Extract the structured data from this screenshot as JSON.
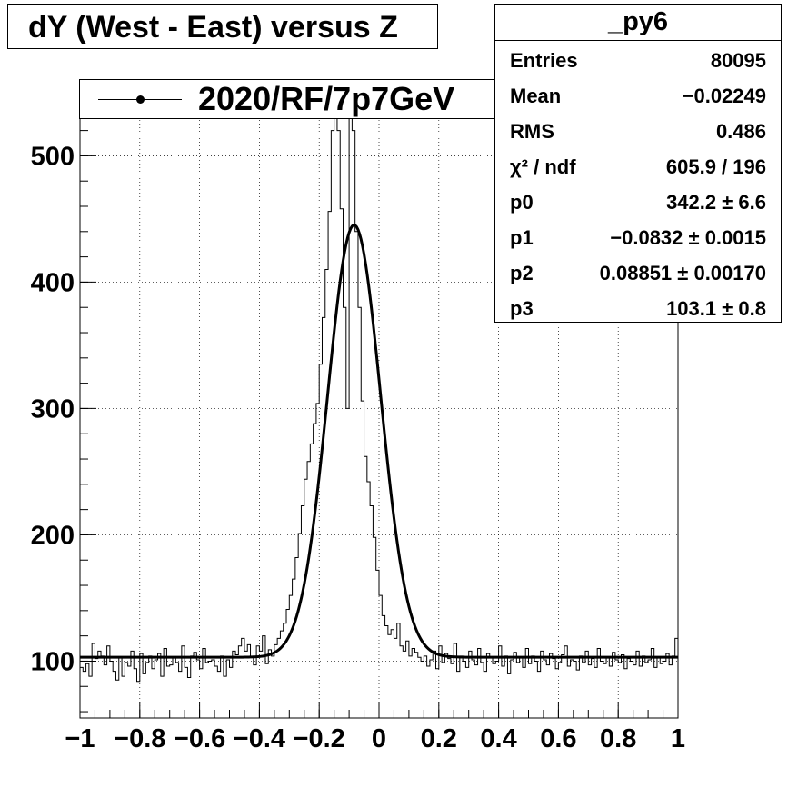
{
  "title": "dY (West - East) versus Z",
  "legend": {
    "label": "2020/RF/7p7GeV"
  },
  "stats": {
    "name": "_py6",
    "rows": [
      {
        "key": "Entries",
        "value": "80095"
      },
      {
        "key": "Mean",
        "value": "−0.02249"
      },
      {
        "key": "RMS",
        "value": "0.486"
      },
      {
        "key": "χ² / ndf",
        "value": "605.9 / 196"
      },
      {
        "key": "p0",
        "value": "342.2 ± 6.6"
      },
      {
        "key": "p1",
        "value": "−0.0832 ± 0.0015"
      },
      {
        "key": "p2",
        "value": "0.08851 ± 0.00170"
      },
      {
        "key": "p3",
        "value": "103.1 ± 0.8"
      }
    ]
  },
  "chart_data": {
    "type": "histogram",
    "title": "dY (West - East) versus Z",
    "xlabel": "",
    "ylabel": "",
    "xlim": [
      -1,
      1
    ],
    "ylim": [
      55,
      560
    ],
    "grid": true,
    "xticks": [
      -1,
      -0.8,
      -0.6,
      -0.4,
      -0.2,
      0,
      0.2,
      0.4,
      0.6,
      0.8,
      1
    ],
    "xtick_labels": [
      "−1",
      "−0.8",
      "−0.6",
      "−0.4",
      "−0.2",
      "0",
      "0.2",
      "0.4",
      "0.6",
      "0.8",
      "1"
    ],
    "yticks": [
      100,
      200,
      300,
      400,
      500
    ],
    "ytick_labels": [
      "100",
      "200",
      "300",
      "400",
      "500"
    ],
    "series": [
      {
        "name": "2020/RF/7p7GeV",
        "kind": "step",
        "bins": [
          -1,
          1
        ],
        "nbins": 200,
        "counts": [
          95,
          92,
          98,
          88,
          114,
          102,
          108,
          104,
          97,
          112,
          100,
          92,
          85,
          103,
          88,
          99,
          96,
          108,
          94,
          84,
          106,
          90,
          99,
          104,
          94,
          101,
          106,
          88,
          110,
          96,
          97,
          103,
          99,
          92,
          112,
          95,
          87,
          104,
          107,
          101,
          94,
          110,
          99,
          100,
          101,
          96,
          92,
          104,
          88,
          101,
          95,
          108,
          105,
          112,
          118,
          108,
          113,
          103,
          97,
          112,
          108,
          120,
          98,
          109,
          104,
          113,
          118,
          124,
          130,
          141,
          152,
          165,
          182,
          201,
          223,
          244,
          258,
          272,
          288,
          304,
          335,
          372,
          410,
          456,
          520,
          560,
          520,
          458,
          380,
          300,
          560,
          520,
          440,
          380,
          306,
          262,
          242,
          223,
          198,
          172,
          152,
          136,
          128,
          121,
          125,
          118,
          130,
          112,
          108,
          116,
          104,
          110,
          107,
          103,
          100,
          104,
          96,
          101,
          108,
          94,
          112,
          99,
          106,
          102,
          98,
          114,
          92,
          104,
          100,
          95,
          108,
          101,
          97,
          110,
          99,
          92,
          106,
          103,
          98,
          100,
          112,
          96,
          104,
          90,
          101,
          107,
          99,
          103,
          95,
          110,
          98,
          104,
          100,
          92,
          108,
          101,
          97,
          106,
          102,
          94,
          99,
          105,
          112,
          96,
          101,
          100,
          93,
          104,
          99,
          108,
          97,
          102,
          95,
          110,
          100,
          98,
          103,
          96,
          107,
          101,
          99,
          105,
          94,
          102,
          100,
          97,
          108,
          96,
          104,
          99,
          101,
          110,
          95,
          103,
          98,
          100,
          106,
          97,
          104,
          118
        ],
        "color": "#000000"
      },
      {
        "name": "fit",
        "kind": "gaussian_plus_constant",
        "params": {
          "p0": 342.2,
          "p1": -0.0832,
          "p2": 0.08851,
          "p3": 103.1
        },
        "color": "#000000"
      }
    ]
  }
}
